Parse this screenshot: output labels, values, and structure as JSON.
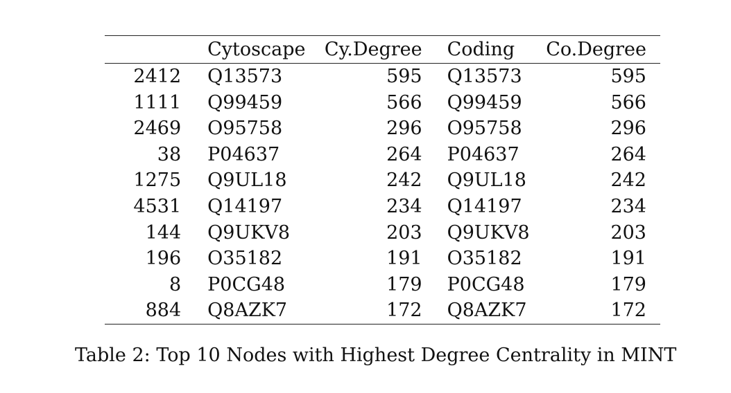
{
  "table": {
    "headers": [
      "",
      "Cytoscape",
      "Cy.Degree",
      "Coding",
      "Co.Degree"
    ],
    "rows": [
      [
        "2412",
        "Q13573",
        "595",
        "Q13573",
        "595"
      ],
      [
        "1111",
        "Q99459",
        "566",
        "Q99459",
        "566"
      ],
      [
        "2469",
        "O95758",
        "296",
        "O95758",
        "296"
      ],
      [
        "38",
        "P04637",
        "264",
        "P04637",
        "264"
      ],
      [
        "1275",
        "Q9UL18",
        "242",
        "Q9UL18",
        "242"
      ],
      [
        "4531",
        "Q14197",
        "234",
        "Q14197",
        "234"
      ],
      [
        "144",
        "Q9UKV8",
        "203",
        "Q9UKV8",
        "203"
      ],
      [
        "196",
        "O35182",
        "191",
        "O35182",
        "191"
      ],
      [
        "8",
        "P0CG48",
        "179",
        "P0CG48",
        "179"
      ],
      [
        "884",
        "Q8AZK7",
        "172",
        "Q8AZK7",
        "172"
      ]
    ]
  },
  "caption": "Table 2: Top 10 Nodes with Highest Degree Centrality in MINT"
}
